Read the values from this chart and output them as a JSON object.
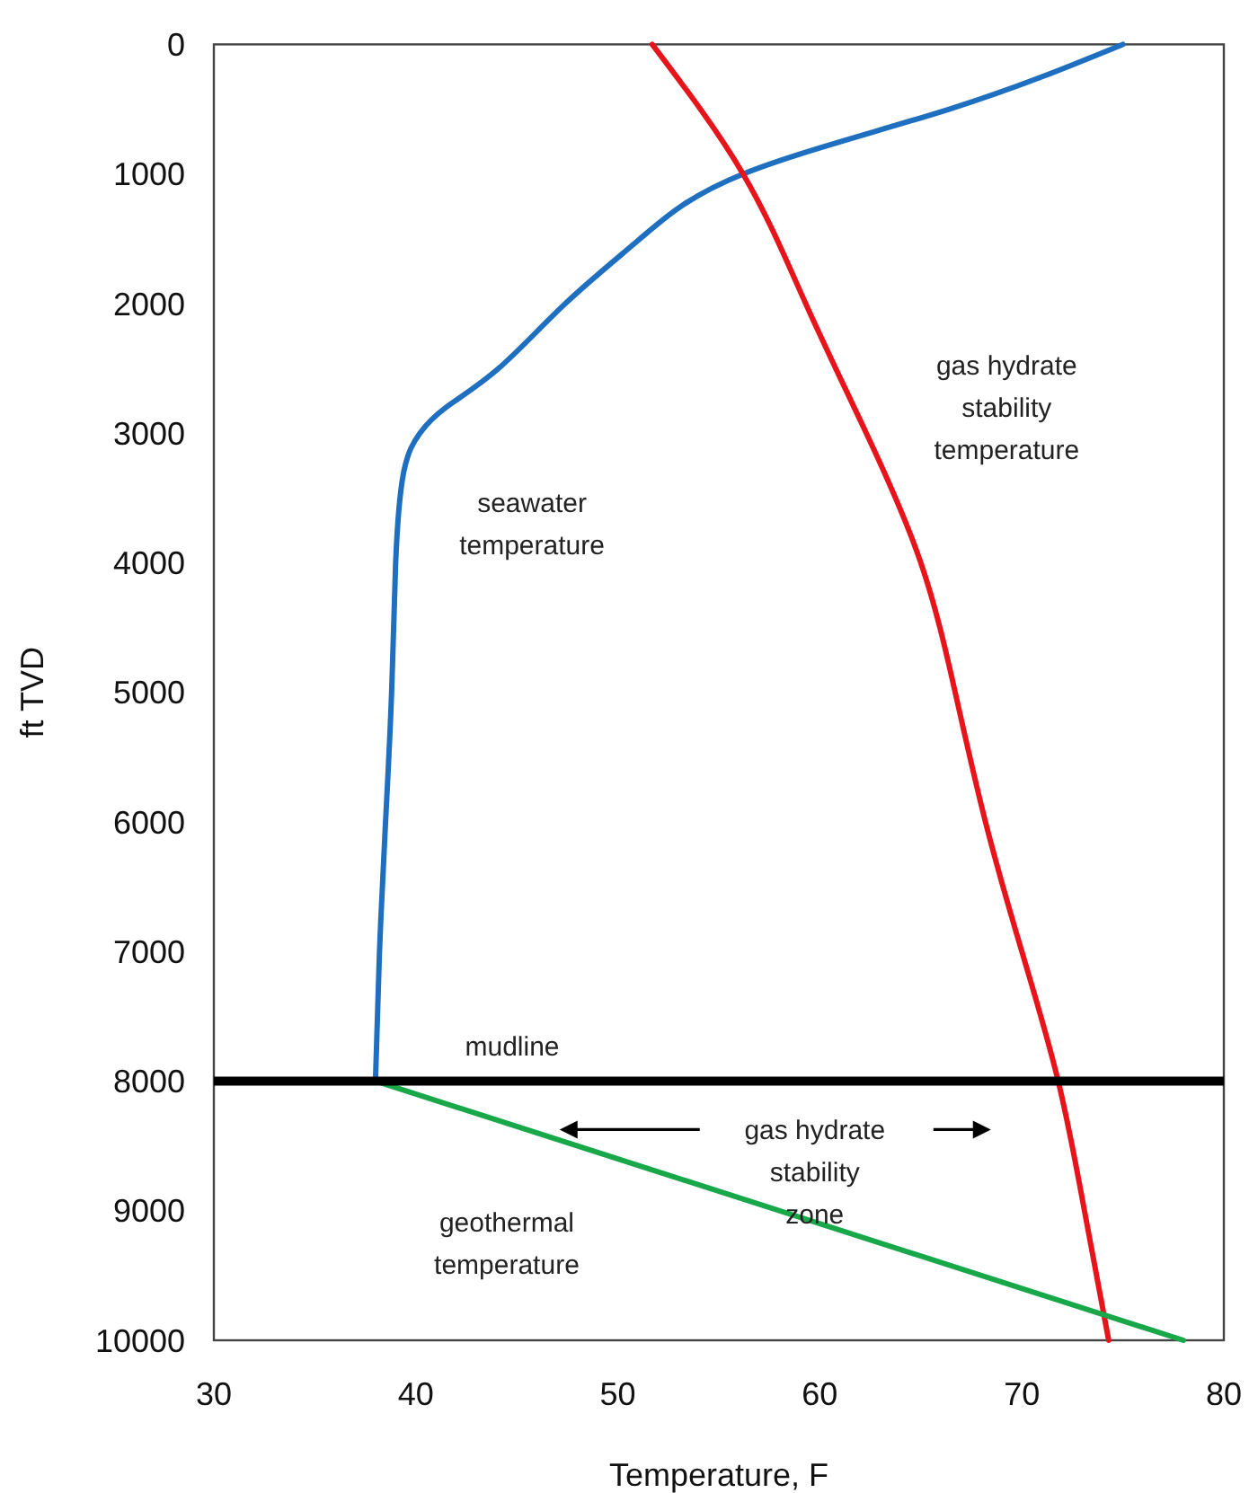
{
  "chart_data": {
    "type": "line",
    "xlabel": "Temperature, F",
    "ylabel": "ft TVD",
    "xlim": [
      30,
      80
    ],
    "xticks": [
      30,
      40,
      50,
      60,
      70,
      80
    ],
    "ylim": [
      10000,
      0
    ],
    "yticks": [
      0,
      1000,
      2000,
      3000,
      4000,
      5000,
      6000,
      7000,
      8000,
      9000,
      10000
    ],
    "grid": false,
    "marker": "none",
    "line_style": "solid",
    "series": [
      {
        "color": "#1f6fc0",
        "x": [
          75.0,
          66.4,
          56.2,
          51.1,
          47.4,
          44.1,
          41.5,
          40.2,
          39.4,
          39.0,
          38.8,
          38.5,
          38.2,
          38.0
        ],
        "values": [
          0,
          500,
          1000,
          1500,
          2000,
          2500,
          2800,
          3000,
          3300,
          4000,
          5000,
          6000,
          7000,
          8000
        ]
      },
      {
        "color": "#e8141b",
        "x": [
          51.7,
          56.2,
          59.3,
          62.3,
          65.0,
          66.7,
          68.2,
          70.0,
          71.8,
          73.1,
          74.3
        ],
        "values": [
          0,
          1000,
          2000,
          3000,
          4000,
          5000,
          6000,
          7000,
          8000,
          9000,
          10000
        ]
      },
      {
        "color": "#18a84a",
        "x": [
          38.0,
          78.0
        ],
        "values": [
          8000,
          10000
        ]
      }
    ],
    "ref_lines": [
      {
        "axis": "y",
        "value": 8000,
        "label": "mudline",
        "color": "#000000"
      }
    ],
    "annotations": [
      "seawater\ntemperature",
      "gas hydrate\nstability\ntemperature",
      "gas hydrate\nstability\nzone",
      "geothermal\ntemperature"
    ]
  }
}
